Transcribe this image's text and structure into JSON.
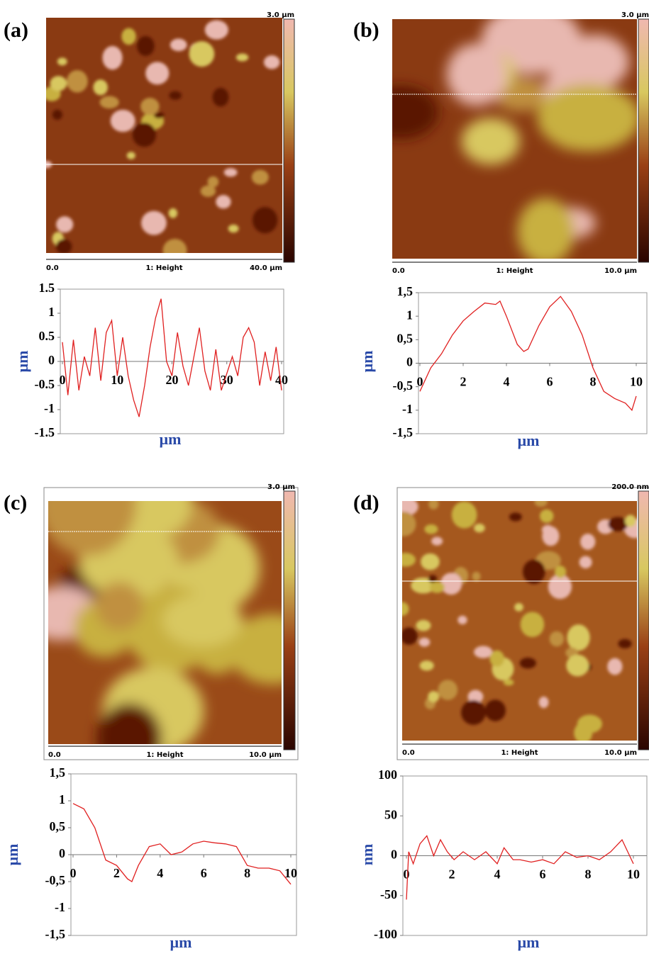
{
  "chart_data": [
    {
      "type": "line",
      "panel_label": "(a)",
      "image_scale": "3.0 µm",
      "image_start": "0.0",
      "image_caption": "1: Height",
      "image_end": "40.0 µm",
      "ylabel": "µm",
      "xlabel": "µm",
      "color": "#e02020",
      "xlim": [
        0,
        40
      ],
      "ylim": [
        -1.5,
        1.5
      ],
      "xticks": [
        0,
        10,
        20,
        30,
        40
      ],
      "yticks": [
        1.5,
        1,
        0.5,
        0,
        -0.5,
        -1,
        -1.5
      ],
      "x": [
        0,
        1,
        2,
        3,
        4,
        5,
        6,
        7,
        8,
        9,
        10,
        11,
        12,
        13,
        14,
        15,
        16,
        17,
        18,
        19,
        20,
        21,
        22,
        23,
        24,
        25,
        26,
        27,
        28,
        29,
        30,
        31,
        32,
        33,
        34,
        35,
        36,
        37,
        38,
        39,
        40
      ],
      "values": [
        0.4,
        -0.7,
        0.45,
        -0.6,
        0.1,
        -0.3,
        0.7,
        -0.4,
        0.6,
        0.85,
        -0.3,
        0.5,
        -0.3,
        -0.8,
        -1.15,
        -0.5,
        0.3,
        0.9,
        1.3,
        0,
        -0.3,
        0.6,
        -0.1,
        -0.5,
        0.1,
        0.7,
        -0.2,
        -0.6,
        0.25,
        -0.6,
        -0.25,
        0.1,
        -0.3,
        0.5,
        0.7,
        0.4,
        -0.5,
        0.2,
        -0.4,
        0.3,
        -0.6
      ]
    },
    {
      "type": "line",
      "panel_label": "(b)",
      "image_scale": "3.0 µm",
      "image_start": "0.0",
      "image_caption": "1: Height",
      "image_end": "10.0 µm",
      "ylabel": "µm",
      "xlabel": "µm",
      "color": "#e02020",
      "xlim": [
        0,
        10
      ],
      "ylim": [
        -1.5,
        1.5
      ],
      "xticks": [
        0,
        2,
        4,
        6,
        8,
        10
      ],
      "yticks": [
        {
          "value": 1.5,
          "label": "1,5"
        },
        1,
        {
          "value": 0.5,
          "label": "0,5"
        },
        0,
        {
          "value": -0.5,
          "label": "-0,5"
        },
        -1,
        {
          "value": -1.5,
          "label": "-1,5"
        }
      ],
      "x": [
        0,
        0.5,
        1,
        1.5,
        2,
        2.5,
        3,
        3.5,
        3.7,
        4,
        4.5,
        4.8,
        5,
        5.5,
        6,
        6.5,
        7,
        7.5,
        8,
        8.5,
        9,
        9.5,
        9.8,
        10
      ],
      "values": [
        -0.6,
        -0.1,
        0.2,
        0.6,
        0.9,
        1.1,
        1.28,
        1.25,
        1.32,
        1.0,
        0.4,
        0.25,
        0.3,
        0.8,
        1.2,
        1.42,
        1.1,
        0.6,
        -0.1,
        -0.6,
        -0.75,
        -0.85,
        -1.0,
        -0.7
      ]
    },
    {
      "type": "line",
      "panel_label": "(c)",
      "image_scale": "3.0 µm",
      "image_start": "0.0",
      "image_caption": "1: Height",
      "image_end": "10.0 µm",
      "ylabel": "µm",
      "xlabel": "µm",
      "color": "#e02020",
      "xlim": [
        0,
        10
      ],
      "ylim": [
        -1.5,
        1.5
      ],
      "xticks": [
        0,
        2,
        4,
        6,
        8,
        10
      ],
      "yticks": [
        {
          "value": 1.5,
          "label": "1,5"
        },
        1,
        {
          "value": 0.5,
          "label": "0,5"
        },
        0,
        {
          "value": -0.5,
          "label": "-0,5"
        },
        -1,
        {
          "value": -1.5,
          "label": "-1,5"
        }
      ],
      "x": [
        0,
        0.5,
        1,
        1.5,
        2,
        2.5,
        2.7,
        3,
        3.5,
        4,
        4.5,
        5,
        5.5,
        6,
        6.5,
        7,
        7.5,
        8,
        8.5,
        9,
        9.5,
        10
      ],
      "values": [
        0.95,
        0.85,
        0.5,
        -0.1,
        -0.2,
        -0.45,
        -0.5,
        -0.2,
        0.15,
        0.2,
        0,
        0.05,
        0.2,
        0.25,
        0.22,
        0.2,
        0.15,
        -0.2,
        -0.25,
        -0.25,
        -0.3,
        -0.55
      ]
    },
    {
      "type": "line",
      "panel_label": "(d)",
      "image_scale": "200.0 nm",
      "image_start": "0.0",
      "image_caption": "1: Height",
      "image_end": "10.0 µm",
      "ylabel": "nm",
      "xlabel": "µm",
      "color": "#e02020",
      "xlim": [
        0,
        10
      ],
      "ylim": [
        -100,
        100
      ],
      "xticks": [
        0,
        2,
        4,
        6,
        8,
        10
      ],
      "yticks": [
        100,
        50,
        0,
        -50,
        -100
      ],
      "x": [
        0,
        0.1,
        0.3,
        0.6,
        0.9,
        1.2,
        1.5,
        1.8,
        2.1,
        2.5,
        3,
        3.5,
        4,
        4.3,
        4.7,
        5,
        5.5,
        6,
        6.5,
        7,
        7.5,
        8,
        8.5,
        9,
        9.5,
        10
      ],
      "values": [
        -55,
        5,
        -10,
        15,
        25,
        0,
        20,
        5,
        -5,
        5,
        -5,
        5,
        -10,
        10,
        -5,
        -5,
        -8,
        -5,
        -10,
        5,
        -2,
        0,
        -5,
        5,
        20,
        -10
      ]
    }
  ]
}
